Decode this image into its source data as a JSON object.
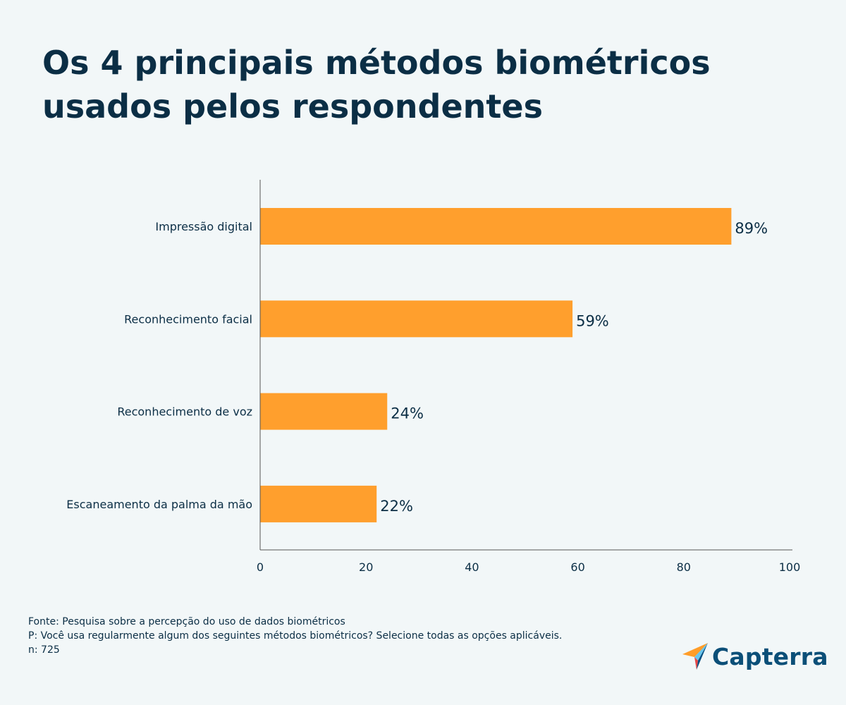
{
  "header": {
    "title_line1": "Os 4 principais métodos biométricos",
    "title_line2": "usados pelos respondentes"
  },
  "chart_data": {
    "type": "bar",
    "orientation": "horizontal",
    "categories": [
      "Impressão digital",
      "Reconhecimento facial",
      "Reconhecimento de voz",
      "Escaneamento da palma da mão"
    ],
    "values": [
      89,
      59,
      24,
      22
    ],
    "value_labels": [
      "89%",
      "59%",
      "24%",
      "22%"
    ],
    "xlim": [
      0,
      100
    ],
    "xticks": [
      0,
      20,
      40,
      60,
      80,
      100
    ],
    "grid": false,
    "bar_color": "#ff9f2d",
    "axis_color": "#555555"
  },
  "footer": {
    "source": "Fonte: Pesquisa sobre a percepção do uso de dados biométricos",
    "question": "P: Você usa regularmente algum dos seguintes métodos biométricos? Selecione todas as opções aplicáveis.",
    "sample": "n: 725"
  },
  "brand": {
    "logo_text": "Capterra",
    "logo_icon": "capterra-arrow-icon"
  }
}
